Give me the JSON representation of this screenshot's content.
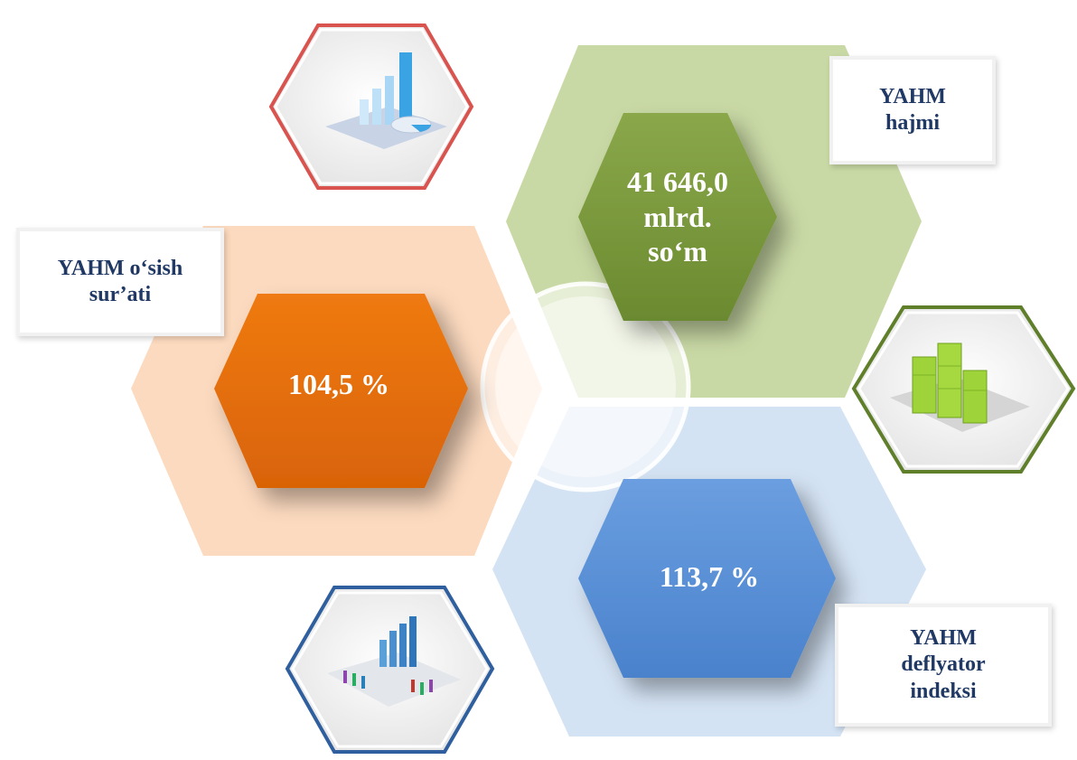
{
  "infographic": {
    "items": [
      {
        "id": "gdp-volume",
        "label": "YAHM\nhajmi",
        "value": "41 646,0\nmlrd.\nso‘m",
        "color": "#76923c"
      },
      {
        "id": "gdp-growth",
        "label": "YAHM o‘sish\nsur’ati",
        "value": "104,5 %",
        "color": "#e36c09"
      },
      {
        "id": "gdp-deflator",
        "label": "YAHM\ndeflyator\nindeksi",
        "value": "113,7 %",
        "color": "#558ed5"
      }
    ]
  },
  "icons": {
    "top_left": "bar-pie-chart-icon",
    "right": "green-bar-chart-icon",
    "bottom_left": "report-chart-icon"
  }
}
